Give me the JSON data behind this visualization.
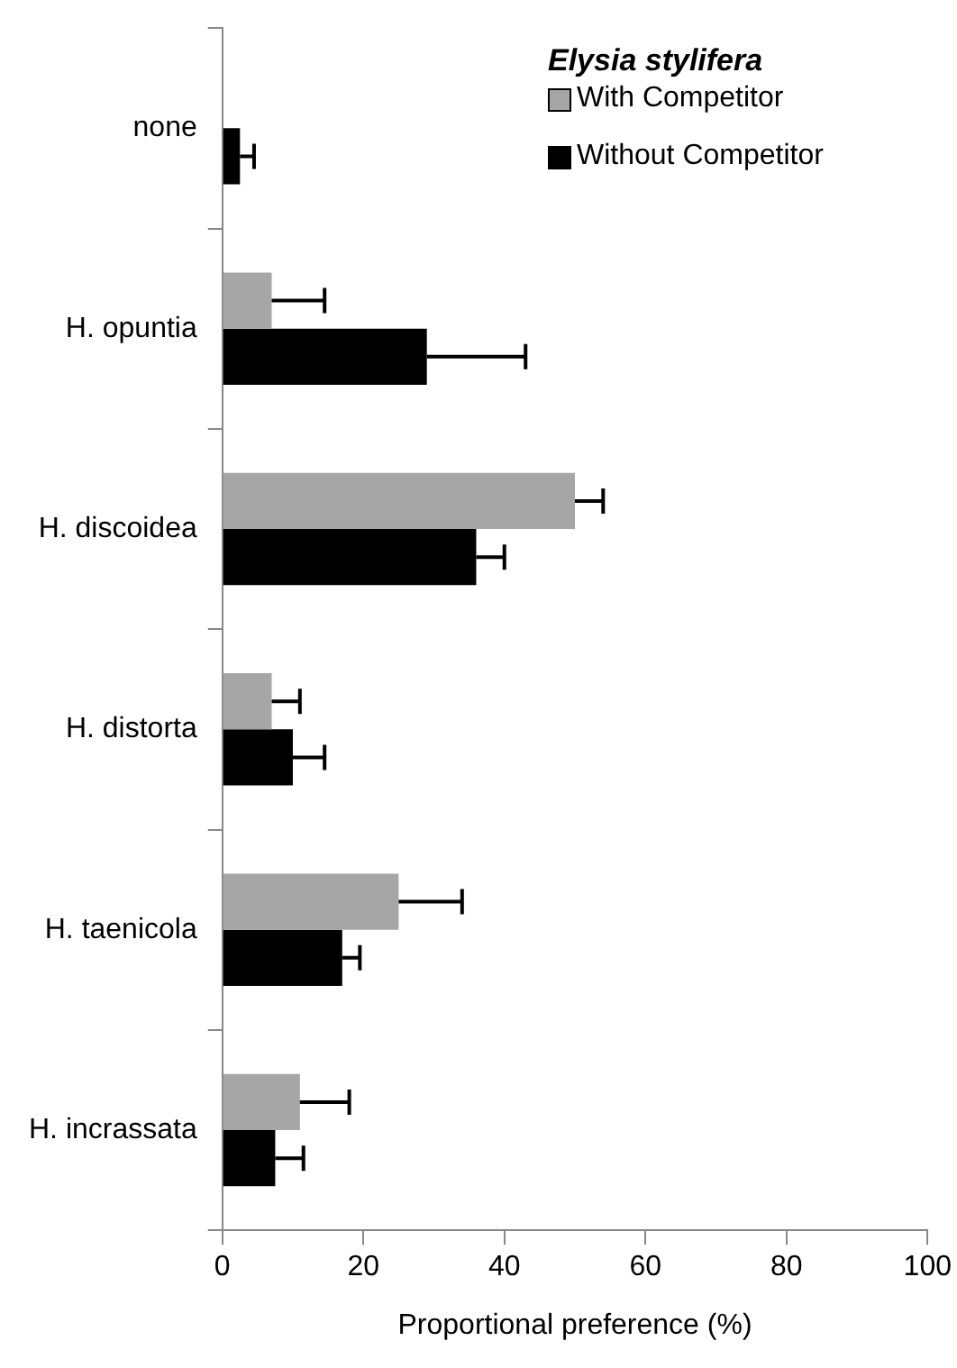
{
  "chart_data": {
    "type": "bar",
    "orientation": "horizontal",
    "xlabel": "Proportional preference (%)",
    "legend_title": "Elysia stylifera",
    "legend": "top right",
    "categories": [
      "none",
      "H. opuntia",
      "H. discoidea",
      "H. distorta",
      "H. taenicola",
      "H. incrassata"
    ],
    "series": [
      {
        "name": "With Competitor",
        "color": "#a6a6a6",
        "values": [
          0,
          7,
          50,
          7,
          25,
          11
        ],
        "errors": [
          null,
          7.5,
          4,
          4,
          9,
          7
        ]
      },
      {
        "name": "Without Competitor",
        "color": "#000000",
        "values": [
          2.5,
          29,
          36,
          10,
          17,
          7.5
        ],
        "errors": [
          2,
          14,
          4,
          4.5,
          2.5,
          4
        ]
      }
    ],
    "xlim": [
      0,
      100
    ],
    "xticks": [
      0,
      20,
      40,
      60,
      80,
      100
    ],
    "grid": false
  }
}
